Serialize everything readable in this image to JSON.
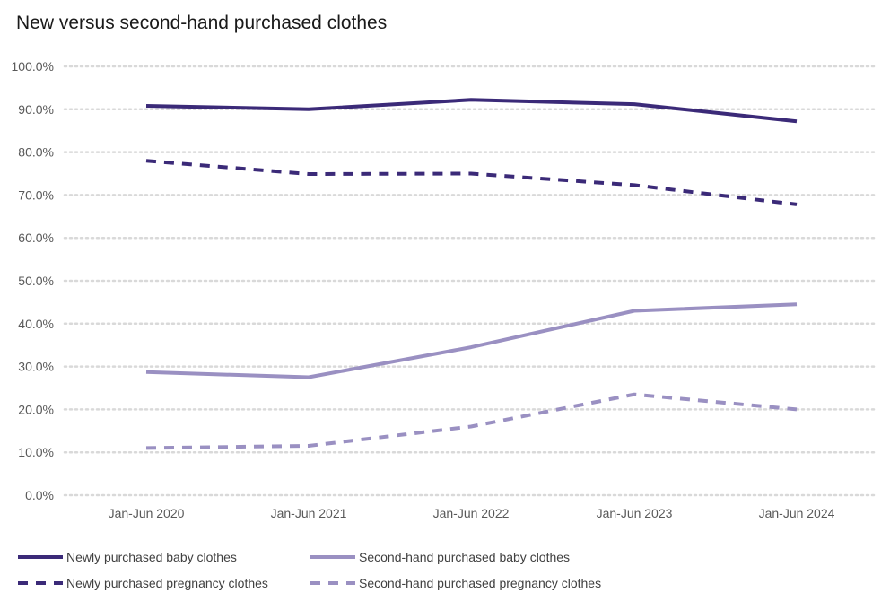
{
  "chart_data": {
    "type": "line",
    "title": "New versus second-hand purchased clothes",
    "categories": [
      "Jan-Jun 2020",
      "Jan-Jun 2021",
      "Jan-Jun 2022",
      "Jan-Jun 2023",
      "Jan-Jun 2024"
    ],
    "yticks": [
      "0.0%",
      "10.0%",
      "20.0%",
      "30.0%",
      "40.0%",
      "50.0%",
      "60.0%",
      "70.0%",
      "80.0%",
      "90.0%",
      "100.0%"
    ],
    "ylim": [
      0,
      100
    ],
    "grid": true,
    "legend_position": "bottom",
    "series": [
      {
        "name": "Newly purchased baby clothes",
        "values": [
          90.8,
          90.0,
          92.2,
          91.2,
          87.2
        ],
        "color": "#3b2a78",
        "dashed": false
      },
      {
        "name": "Second-hand purchased baby clothes",
        "values": [
          28.7,
          27.5,
          34.5,
          43.0,
          44.5
        ],
        "color": "#9a90c2",
        "dashed": false
      },
      {
        "name": "Newly purchased pregnancy clothes",
        "values": [
          78.0,
          74.9,
          75.0,
          72.3,
          67.8
        ],
        "color": "#3b2a78",
        "dashed": true
      },
      {
        "name": "Second-hand purchased pregnancy clothes",
        "values": [
          11.0,
          11.5,
          16.0,
          23.5,
          20.0
        ],
        "color": "#9a90c2",
        "dashed": true
      }
    ]
  }
}
